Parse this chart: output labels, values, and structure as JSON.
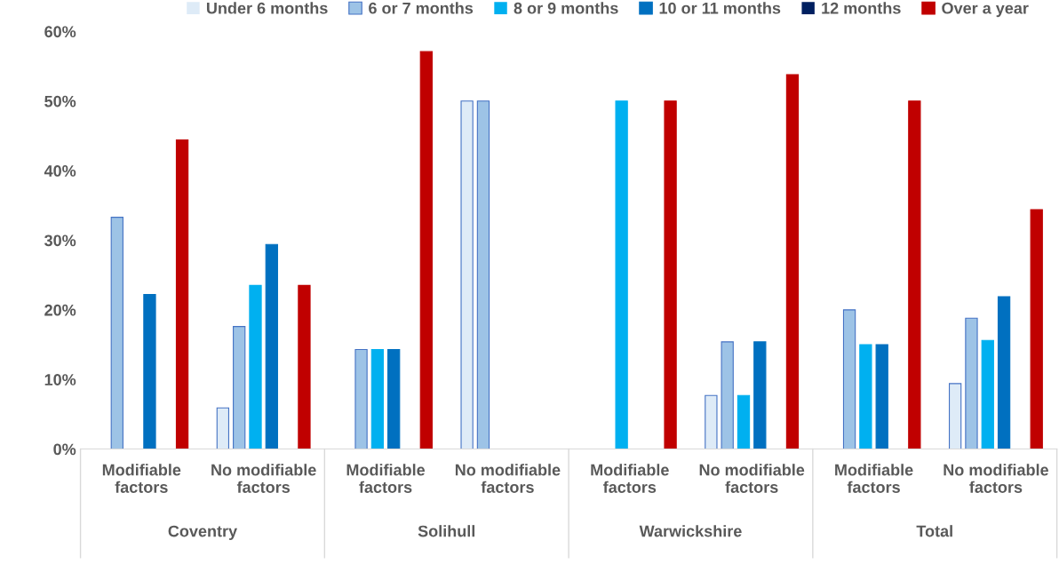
{
  "chart_data": {
    "type": "bar",
    "categories": [
      "Modifiable factors",
      "No modifiable factors",
      "Modifiable factors",
      "No modifiable factors",
      "Modifiable factors",
      "No modifiable factors",
      "Modifiable factors",
      "No modifiable factors"
    ],
    "annotations": [
      "Coventry",
      "Solihull",
      "Warwickshire",
      "Total"
    ],
    "series": [
      {
        "name": "Under 6 months",
        "color": "#deebf7",
        "values": [
          0,
          5.9,
          0,
          50,
          0,
          7.7,
          0,
          9.4
        ]
      },
      {
        "name": "6 or 7 months",
        "color": "#9dc3e6",
        "values": [
          33.3,
          17.6,
          14.3,
          50,
          0,
          15.4,
          20,
          18.8
        ]
      },
      {
        "name": "8 or 9 months",
        "color": "#00b0f0",
        "values": [
          0,
          23.5,
          14.3,
          0,
          50,
          7.7,
          15,
          15.6
        ]
      },
      {
        "name": "10 or 11 months",
        "color": "#0070c0",
        "values": [
          22.2,
          29.4,
          14.3,
          0,
          0,
          15.4,
          15,
          21.9
        ]
      },
      {
        "name": "12 months",
        "color": "#002060",
        "values": [
          0,
          0,
          0,
          0,
          0,
          0,
          0,
          0
        ]
      },
      {
        "name": "Over a year",
        "color": "#c00000",
        "values": [
          44.4,
          23.5,
          57.1,
          0,
          50,
          53.8,
          50,
          34.4
        ]
      }
    ],
    "ylim": [
      0,
      60
    ],
    "yticks": [
      {
        "value": 0,
        "label": "0%"
      },
      {
        "value": 10,
        "label": "10%"
      },
      {
        "value": 20,
        "label": "20%"
      },
      {
        "value": 30,
        "label": "30%"
      },
      {
        "value": 40,
        "label": "40%"
      },
      {
        "value": 50,
        "label": "50%"
      },
      {
        "value": 60,
        "label": "60%"
      }
    ],
    "grid": false,
    "legend": "top"
  }
}
